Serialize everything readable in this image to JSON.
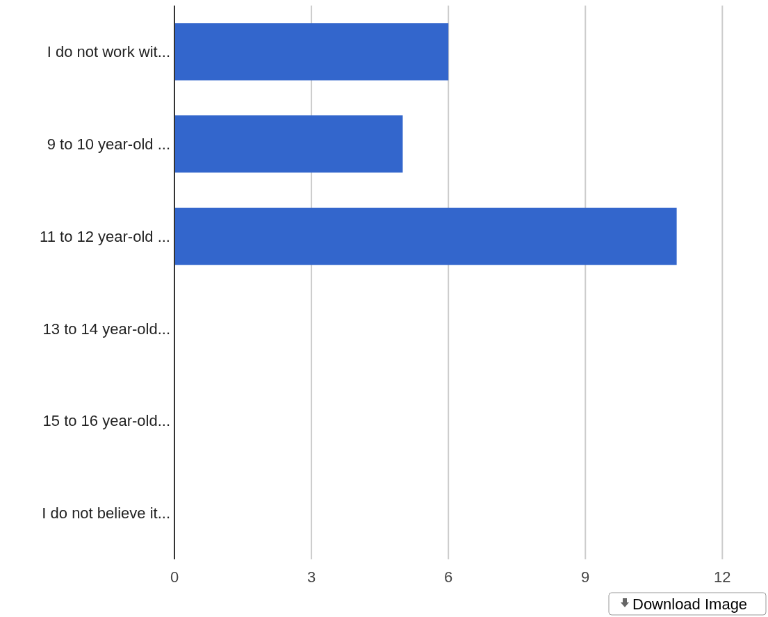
{
  "chart_data": {
    "type": "bar",
    "orientation": "horizontal",
    "categories": [
      "I do not work wit...",
      "9 to 10 year-old ...",
      "11 to 12 year-old ...",
      "13 to 14 year-old...",
      "15 to 16 year-old...",
      "I do not believe it..."
    ],
    "values": [
      6,
      5,
      11,
      0,
      0,
      0
    ],
    "color": "#3366cc",
    "xlim": [
      0,
      13
    ],
    "xticks": [
      0,
      3,
      6,
      9,
      12
    ],
    "grid": "x",
    "annotations": [
      "Download Image"
    ]
  }
}
